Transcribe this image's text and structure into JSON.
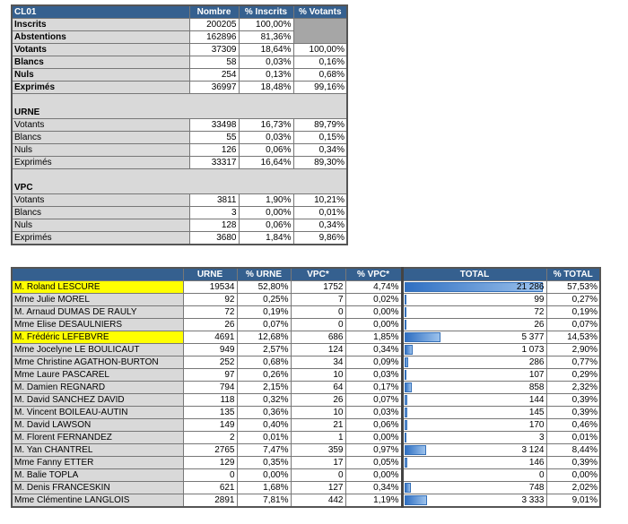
{
  "summary": {
    "headers": [
      "CL01",
      "Nombre",
      "% Inscrits",
      "% Votants"
    ],
    "rows": [
      {
        "label": "Inscrits",
        "n": "200205",
        "pi": "100,00%",
        "pv": null,
        "bold": true
      },
      {
        "label": "Abstentions",
        "n": "162896",
        "pi": "81,36%",
        "pv": null,
        "bold": true
      },
      {
        "label": "Votants",
        "n": "37309",
        "pi": "18,64%",
        "pv": "100,00%",
        "bold": true
      },
      {
        "label": "Blancs",
        "n": "58",
        "pi": "0,03%",
        "pv": "0,16%",
        "bold": true
      },
      {
        "label": "Nuls",
        "n": "254",
        "pi": "0,13%",
        "pv": "0,68%",
        "bold": true
      },
      {
        "label": "Exprimés",
        "n": "36997",
        "pi": "18,48%",
        "pv": "99,16%",
        "bold": true
      },
      {
        "section": "URNE"
      },
      {
        "label": "Votants",
        "n": "33498",
        "pi": "16,73%",
        "pv": "89,79%"
      },
      {
        "label": "Blancs",
        "n": "55",
        "pi": "0,03%",
        "pv": "0,15%"
      },
      {
        "label": "Nuls",
        "n": "126",
        "pi": "0,06%",
        "pv": "0,34%"
      },
      {
        "label": "Exprimés",
        "n": "33317",
        "pi": "16,64%",
        "pv": "89,30%"
      },
      {
        "section": "VPC"
      },
      {
        "label": "Votants",
        "n": "3811",
        "pi": "1,90%",
        "pv": "10,21%"
      },
      {
        "label": "Blancs",
        "n": "3",
        "pi": "0,00%",
        "pv": "0,01%"
      },
      {
        "label": "Nuls",
        "n": "128",
        "pi": "0,06%",
        "pv": "0,34%"
      },
      {
        "label": "Exprimés",
        "n": "3680",
        "pi": "1,84%",
        "pv": "9,86%"
      }
    ]
  },
  "candidates": {
    "headers": [
      "",
      "URNE",
      "% URNE",
      "VPC*",
      "% VPC*",
      "TOTAL",
      "% TOTAL"
    ],
    "highlight_color": "#ffff00",
    "rows": [
      {
        "name": "M. Roland LESCURE",
        "urne": "19534",
        "purne": "52,80%",
        "vpc": "1752",
        "pvpc": "4,74%",
        "total": "21 286",
        "total_value": 21286,
        "ptotal": "57,53%",
        "hl": true
      },
      {
        "name": "Mme Julie MOREL",
        "urne": "92",
        "purne": "0,25%",
        "vpc": "7",
        "pvpc": "0,02%",
        "total": "99",
        "total_value": 99,
        "ptotal": "0,27%"
      },
      {
        "name": "M. Arnaud DUMAS DE RAULY",
        "urne": "72",
        "purne": "0,19%",
        "vpc": "0",
        "pvpc": "0,00%",
        "total": "72",
        "total_value": 72,
        "ptotal": "0,19%"
      },
      {
        "name": "Mme Elise DESAULNIERS",
        "urne": "26",
        "purne": "0,07%",
        "vpc": "0",
        "pvpc": "0,00%",
        "total": "26",
        "total_value": 26,
        "ptotal": "0,07%"
      },
      {
        "name": "M. Frédéric LEFEBVRE",
        "urne": "4691",
        "purne": "12,68%",
        "vpc": "686",
        "pvpc": "1,85%",
        "total": "5 377",
        "total_value": 5377,
        "ptotal": "14,53%",
        "hl": true
      },
      {
        "name": "Mme Jocelyne LE BOULICAUT",
        "urne": "949",
        "purne": "2,57%",
        "vpc": "124",
        "pvpc": "0,34%",
        "total": "1 073",
        "total_value": 1073,
        "ptotal": "2,90%"
      },
      {
        "name": "Mme Christine AGATHON-BURTON",
        "urne": "252",
        "purne": "0,68%",
        "vpc": "34",
        "pvpc": "0,09%",
        "total": "286",
        "total_value": 286,
        "ptotal": "0,77%"
      },
      {
        "name": "Mme Laure PASCAREL",
        "urne": "97",
        "purne": "0,26%",
        "vpc": "10",
        "pvpc": "0,03%",
        "total": "107",
        "total_value": 107,
        "ptotal": "0,29%"
      },
      {
        "name": "M. Damien REGNARD",
        "urne": "794",
        "purne": "2,15%",
        "vpc": "64",
        "pvpc": "0,17%",
        "total": "858",
        "total_value": 858,
        "ptotal": "2,32%"
      },
      {
        "name": "M. David SANCHEZ DAVID",
        "urne": "118",
        "purne": "0,32%",
        "vpc": "26",
        "pvpc": "0,07%",
        "total": "144",
        "total_value": 144,
        "ptotal": "0,39%"
      },
      {
        "name": "M. Vincent BOILEAU-AUTIN",
        "urne": "135",
        "purne": "0,36%",
        "vpc": "10",
        "pvpc": "0,03%",
        "total": "145",
        "total_value": 145,
        "ptotal": "0,39%"
      },
      {
        "name": "M. David LAWSON",
        "urne": "149",
        "purne": "0,40%",
        "vpc": "21",
        "pvpc": "0,06%",
        "total": "170",
        "total_value": 170,
        "ptotal": "0,46%"
      },
      {
        "name": "M. Florent FERNANDEZ",
        "urne": "2",
        "purne": "0,01%",
        "vpc": "1",
        "pvpc": "0,00%",
        "total": "3",
        "total_value": 3,
        "ptotal": "0,01%"
      },
      {
        "name": "M. Yan CHANTREL",
        "urne": "2765",
        "purne": "7,47%",
        "vpc": "359",
        "pvpc": "0,97%",
        "total": "3 124",
        "total_value": 3124,
        "ptotal": "8,44%"
      },
      {
        "name": "Mme Fanny ETTER",
        "urne": "129",
        "purne": "0,35%",
        "vpc": "17",
        "pvpc": "0,05%",
        "total": "146",
        "total_value": 146,
        "ptotal": "0,39%"
      },
      {
        "name": "M. Balie TOPLA",
        "urne": "0",
        "purne": "0,00%",
        "vpc": "0",
        "pvpc": "0,00%",
        "total": "0",
        "total_value": 0,
        "ptotal": "0,00%"
      },
      {
        "name": "M. Denis FRANCESKIN",
        "urne": "621",
        "purne": "1,68%",
        "vpc": "127",
        "pvpc": "0,34%",
        "total": "748",
        "total_value": 748,
        "ptotal": "2,02%"
      },
      {
        "name": "Mme Clémentine LANGLOIS",
        "urne": "2891",
        "purne": "7,81%",
        "vpc": "442",
        "pvpc": "1,19%",
        "total": "3 333",
        "total_value": 3333,
        "ptotal": "9,01%"
      }
    ]
  }
}
